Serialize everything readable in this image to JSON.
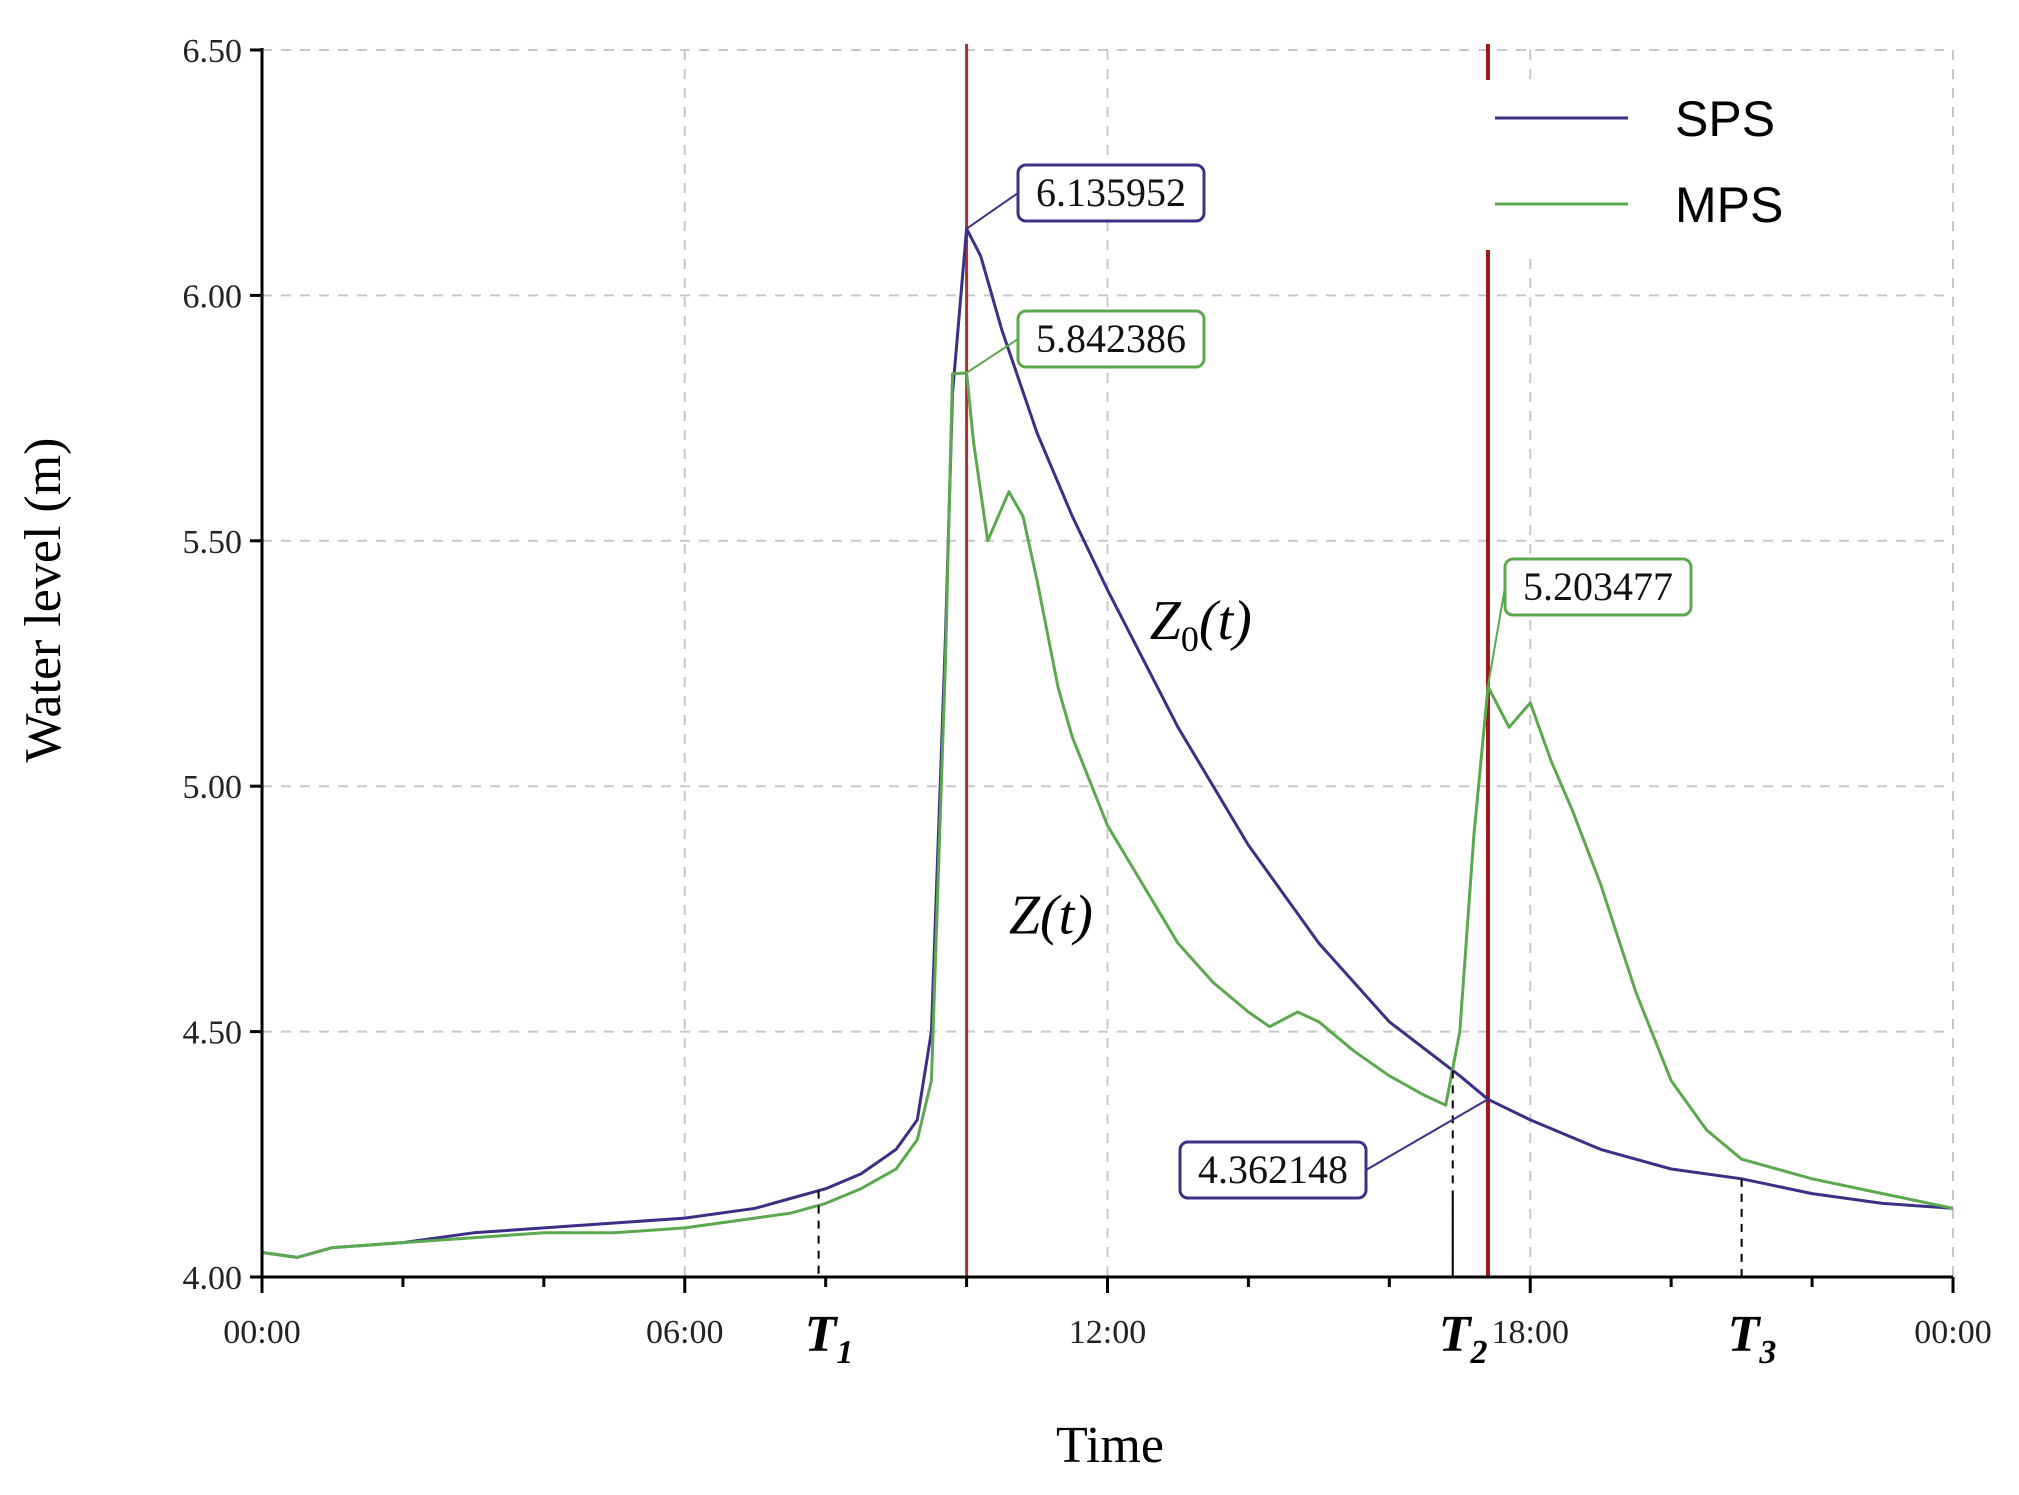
{
  "chart_data": {
    "type": "line",
    "title": "",
    "xlabel": "Time",
    "ylabel": "Water level (m)",
    "xlim": [
      0,
      24
    ],
    "ylim": [
      4.0,
      6.5
    ],
    "y_ticks": [
      "4.00",
      "4.50",
      "5.00",
      "5.50",
      "6.00",
      "6.50"
    ],
    "x_tick_values": [
      0,
      6,
      12,
      18,
      24
    ],
    "x_ticks": [
      "00:00",
      "06:00",
      "12:00",
      "18:00",
      "00:00"
    ],
    "grid": true,
    "legend_position": "top-right",
    "series": [
      {
        "name": "SPS",
        "color": "#3b2f86",
        "x": [
          0,
          0.5,
          1,
          2,
          3,
          4,
          5,
          6,
          7,
          7.5,
          8,
          8.5,
          9,
          9.3,
          9.5,
          9.7,
          9.8,
          10.0,
          10.2,
          10.5,
          11,
          11.5,
          12,
          13,
          14,
          15,
          16,
          17,
          17.4,
          18,
          19,
          20,
          21,
          22,
          23,
          24
        ],
        "y": [
          4.05,
          4.04,
          4.06,
          4.07,
          4.09,
          4.1,
          4.11,
          4.12,
          4.14,
          4.16,
          4.18,
          4.21,
          4.26,
          4.32,
          4.5,
          5.3,
          5.8,
          6.136,
          6.08,
          5.93,
          5.72,
          5.55,
          5.4,
          5.12,
          4.88,
          4.68,
          4.52,
          4.41,
          4.362,
          4.32,
          4.26,
          4.22,
          4.2,
          4.17,
          4.15,
          4.14
        ]
      },
      {
        "name": "MPS",
        "color": "#5ca84f",
        "x": [
          0,
          0.5,
          1,
          2,
          3,
          4,
          5,
          6,
          7,
          7.5,
          8,
          8.5,
          9,
          9.3,
          9.5,
          9.7,
          9.8,
          10.0,
          10.1,
          10.3,
          10.6,
          10.8,
          11.0,
          11.3,
          11.5,
          12,
          12.5,
          13,
          13.5,
          14,
          14.3,
          14.7,
          15,
          15.5,
          16,
          16.5,
          16.8,
          17.0,
          17.2,
          17.4,
          17.7,
          18.0,
          18.3,
          18.6,
          19.0,
          19.5,
          20,
          20.5,
          21,
          22,
          23,
          24
        ],
        "y": [
          4.05,
          4.04,
          4.06,
          4.07,
          4.08,
          4.09,
          4.09,
          4.1,
          4.12,
          4.13,
          4.15,
          4.18,
          4.22,
          4.28,
          4.4,
          5.25,
          5.84,
          5.842,
          5.7,
          5.5,
          5.6,
          5.55,
          5.42,
          5.2,
          5.1,
          4.92,
          4.8,
          4.68,
          4.6,
          4.54,
          4.51,
          4.54,
          4.52,
          4.46,
          4.41,
          4.37,
          4.35,
          4.5,
          4.9,
          5.203,
          5.12,
          5.17,
          5.05,
          4.95,
          4.8,
          4.58,
          4.4,
          4.3,
          4.24,
          4.2,
          4.17,
          4.14
        ]
      }
    ],
    "callouts": [
      {
        "text": "6.135952",
        "x": 10.0,
        "y": 6.135952,
        "series": "SPS"
      },
      {
        "text": "5.842386",
        "x": 10.0,
        "y": 5.842386,
        "series": "MPS"
      },
      {
        "text": "5.203477",
        "x": 17.4,
        "y": 5.203477,
        "series": "MPS"
      },
      {
        "text": "4.362148",
        "x": 17.4,
        "y": 4.362148,
        "series": "SPS"
      }
    ],
    "vertical_lines": [
      {
        "x": 10.0,
        "color": "#b03030"
      },
      {
        "x": 17.4,
        "color": "#a01818"
      }
    ],
    "markers": [
      {
        "label": "T",
        "sub": "1",
        "x": 7.9
      },
      {
        "label": "T",
        "sub": "2",
        "x": 16.9
      },
      {
        "label": "T",
        "sub": "3",
        "x": 21.0
      }
    ],
    "curve_labels": [
      {
        "main": "Z",
        "sub": "0",
        "rest": "(t)",
        "x": 12.6,
        "y": 5.3,
        "series": "SPS"
      },
      {
        "main": "Z",
        "sub": "",
        "rest": "(t)",
        "x": 10.6,
        "y": 4.7,
        "series": "MPS"
      }
    ]
  }
}
